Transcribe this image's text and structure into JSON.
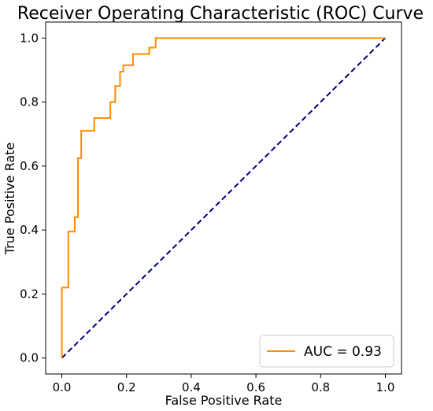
{
  "chart_data": {
    "type": "line",
    "title": "Receiver Operating Characteristic (ROC) Curve",
    "xlabel": "False Positive Rate",
    "ylabel": "True Positive Rate",
    "xlim": [
      -0.05,
      1.05
    ],
    "ylim": [
      -0.05,
      1.05
    ],
    "xticks": [
      "0.0",
      "0.2",
      "0.4",
      "0.6",
      "0.8",
      "1.0"
    ],
    "yticks": [
      "0.0",
      "0.2",
      "0.4",
      "0.6",
      "0.8",
      "1.0"
    ],
    "grid": false,
    "legend_position": "lower-right",
    "series": [
      {
        "name": "AUC = 0.93",
        "color": "#ff8c00",
        "style": "solid",
        "x": [
          0.0,
          0.0,
          0.02,
          0.02,
          0.04,
          0.04,
          0.05,
          0.05,
          0.06,
          0.06,
          0.07,
          0.07,
          0.1,
          0.1,
          0.15,
          0.15,
          0.165,
          0.165,
          0.18,
          0.18,
          0.19,
          0.19,
          0.22,
          0.22,
          0.27,
          0.27,
          0.29,
          0.29,
          1.0
        ],
        "y": [
          0.0,
          0.22,
          0.22,
          0.395,
          0.395,
          0.44,
          0.44,
          0.625,
          0.625,
          0.71,
          0.71,
          0.71,
          0.71,
          0.75,
          0.75,
          0.8,
          0.8,
          0.85,
          0.85,
          0.895,
          0.895,
          0.915,
          0.915,
          0.95,
          0.95,
          0.97,
          0.97,
          1.0,
          1.0
        ]
      },
      {
        "color": "#000080",
        "style": "dashed",
        "x": [
          0.0,
          1.0
        ],
        "y": [
          0.0,
          1.0
        ]
      }
    ]
  }
}
